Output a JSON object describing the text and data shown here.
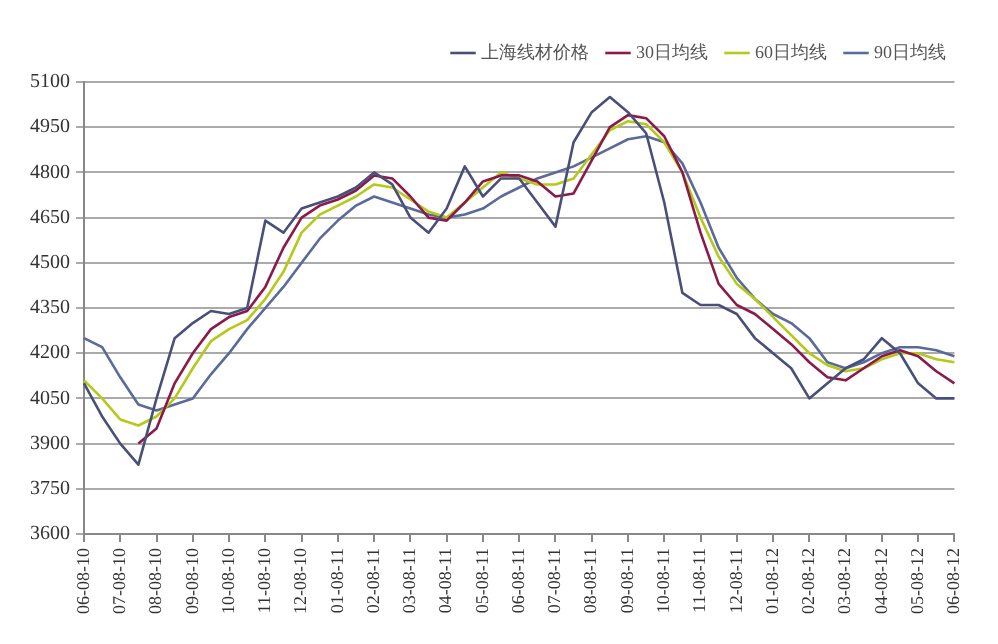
{
  "chart_data": {
    "type": "line",
    "categories": [
      "06-08-10",
      null,
      "07-08-10",
      null,
      "08-08-10",
      null,
      "09-08-10",
      null,
      "10-08-10",
      null,
      "11-08-10",
      null,
      "12-08-10",
      null,
      "01-08-11",
      null,
      "02-08-11",
      null,
      "03-08-11",
      null,
      "04-08-11",
      null,
      "05-08-11",
      null,
      "06-08-11",
      null,
      "07-08-11",
      null,
      "08-08-11",
      null,
      "09-08-11",
      null,
      "10-08-11",
      null,
      "11-08-11",
      null,
      "12-08-11",
      null,
      "01-08-12",
      null,
      "02-08-12",
      null,
      "03-08-12",
      null,
      "04-08-12",
      null,
      "05-08-12",
      null,
      "06-08-12"
    ],
    "series": [
      {
        "name": "上海线材价格",
        "color": "#4a4f7a",
        "values": [
          4100,
          3990,
          3900,
          3830,
          4050,
          4250,
          4300,
          4340,
          4330,
          4350,
          4640,
          4600,
          4680,
          4700,
          4720,
          4750,
          4800,
          4760,
          4650,
          4600,
          4680,
          4820,
          4720,
          4780,
          4780,
          4700,
          4620,
          4900,
          5000,
          5050,
          5000,
          4930,
          4700,
          4400,
          4360,
          4360,
          4330,
          4250,
          4200,
          4150,
          4050,
          4100,
          4150,
          4180,
          4250,
          4200,
          4100,
          4050,
          4050
        ]
      },
      {
        "name": "30日均线",
        "color": "#8b1a4a",
        "values": [
          null,
          null,
          null,
          3900,
          3950,
          4100,
          4200,
          4280,
          4320,
          4340,
          4420,
          4550,
          4650,
          4690,
          4710,
          4740,
          4790,
          4780,
          4720,
          4650,
          4640,
          4700,
          4770,
          4790,
          4790,
          4770,
          4720,
          4730,
          4840,
          4950,
          4990,
          4980,
          4920,
          4800,
          4600,
          4430,
          4360,
          4330,
          4280,
          4230,
          4170,
          4120,
          4110,
          4150,
          4190,
          4210,
          4190,
          4140,
          4100
        ]
      },
      {
        "name": "60日均线",
        "color": "#b5c918",
        "values": [
          4110,
          4050,
          3980,
          3960,
          3990,
          4050,
          4150,
          4240,
          4280,
          4310,
          4380,
          4470,
          4600,
          4660,
          4690,
          4720,
          4760,
          4750,
          4710,
          4670,
          4650,
          4700,
          4750,
          4800,
          4780,
          4760,
          4760,
          4780,
          4860,
          4940,
          4970,
          4960,
          4900,
          4800,
          4650,
          4520,
          4430,
          4380,
          4320,
          4260,
          4200,
          4160,
          4140,
          4150,
          4180,
          4200,
          4200,
          4180,
          4170
        ]
      },
      {
        "name": "90日均线",
        "color": "#5a6a9a",
        "values": [
          4250,
          4220,
          4120,
          4030,
          4010,
          4030,
          4050,
          4130,
          4200,
          4280,
          4350,
          4420,
          4500,
          4580,
          4640,
          4690,
          4720,
          4700,
          4680,
          4660,
          4650,
          4660,
          4680,
          4720,
          4750,
          4780,
          4800,
          4820,
          4850,
          4880,
          4910,
          4920,
          4900,
          4830,
          4700,
          4550,
          4450,
          4380,
          4330,
          4300,
          4250,
          4170,
          4150,
          4170,
          4200,
          4220,
          4220,
          4210,
          4190
        ]
      }
    ],
    "ylim": [
      3600,
      5100
    ],
    "yticks": [
      3600,
      3750,
      3900,
      4050,
      4200,
      4350,
      4500,
      4650,
      4800,
      4950,
      5100
    ],
    "grid": "y",
    "legend": "top",
    "marker": "none",
    "line_style": "solid"
  }
}
